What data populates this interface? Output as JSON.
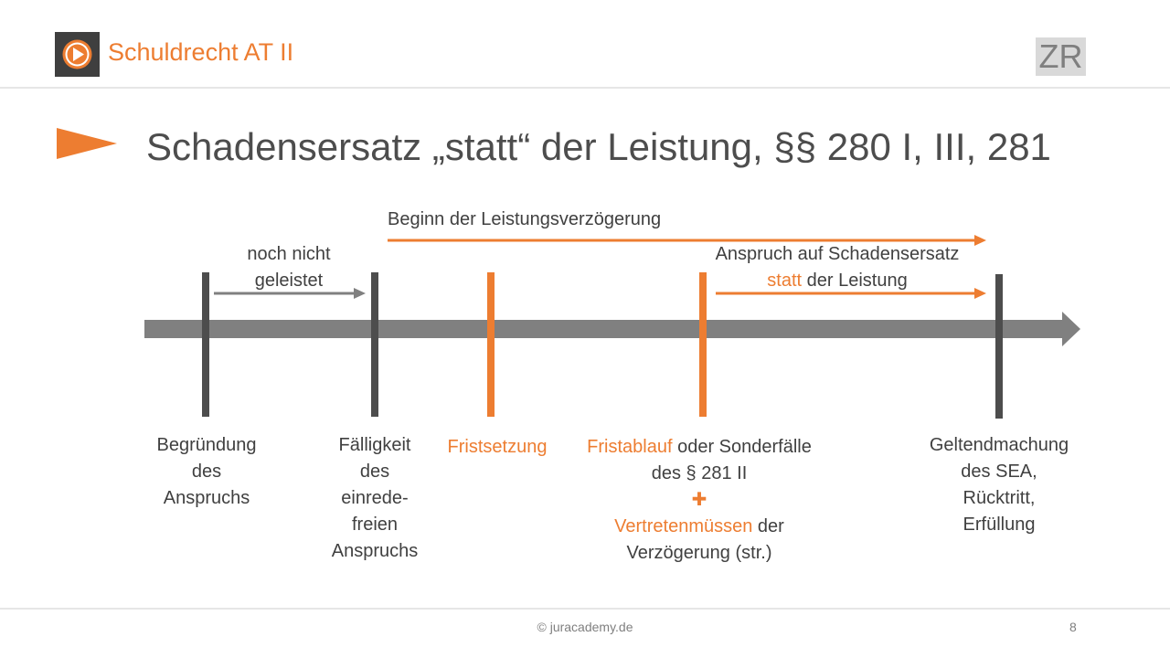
{
  "header": {
    "course_title": "Schuldrecht AT II",
    "badge": "ZR",
    "play_icon": "play-circle-icon"
  },
  "slide": {
    "title": "Schadensersatz „statt“ der Leistung, §§ 280 I, III, 281",
    "bullet_icon": "orange-triangle-pointer-icon"
  },
  "timeline": {
    "top_label": "Beginn der Leistungsverzögerung",
    "noch_nicht_line1": "noch nicht",
    "noch_nicht_line2": "geleistet",
    "anspruch_line1": "Anspruch auf Schadensersatz",
    "anspruch_statt": "statt",
    "anspruch_rest": " der Leistung",
    "markers": [
      {
        "lines": [
          "Begründung",
          "des",
          "Anspruchs"
        ]
      },
      {
        "lines": [
          "Fälligkeit",
          "des",
          "einrede-",
          "freien",
          "Anspruchs"
        ]
      },
      {
        "lines": [
          "Fristsetzung"
        ]
      },
      {
        "fristablauf": "Fristablauf",
        "oder": " oder Sonderfälle",
        "line2": "des § 281 II",
        "plus": "✚",
        "vertreten": "Vertretenmüssen",
        "der": " der",
        "line4": "Verzögerung (str.)"
      },
      {
        "lines": [
          "Geltendmachung",
          "des SEA,",
          "Rücktritt,",
          "Erfüllung"
        ]
      }
    ]
  },
  "footer": {
    "copyright": "© juracademy.de",
    "page": "8"
  },
  "colors": {
    "accent": "#ed7d31",
    "dark_bar": "#4d4d4d",
    "timeline_axis": "#808080",
    "text": "#404040"
  }
}
